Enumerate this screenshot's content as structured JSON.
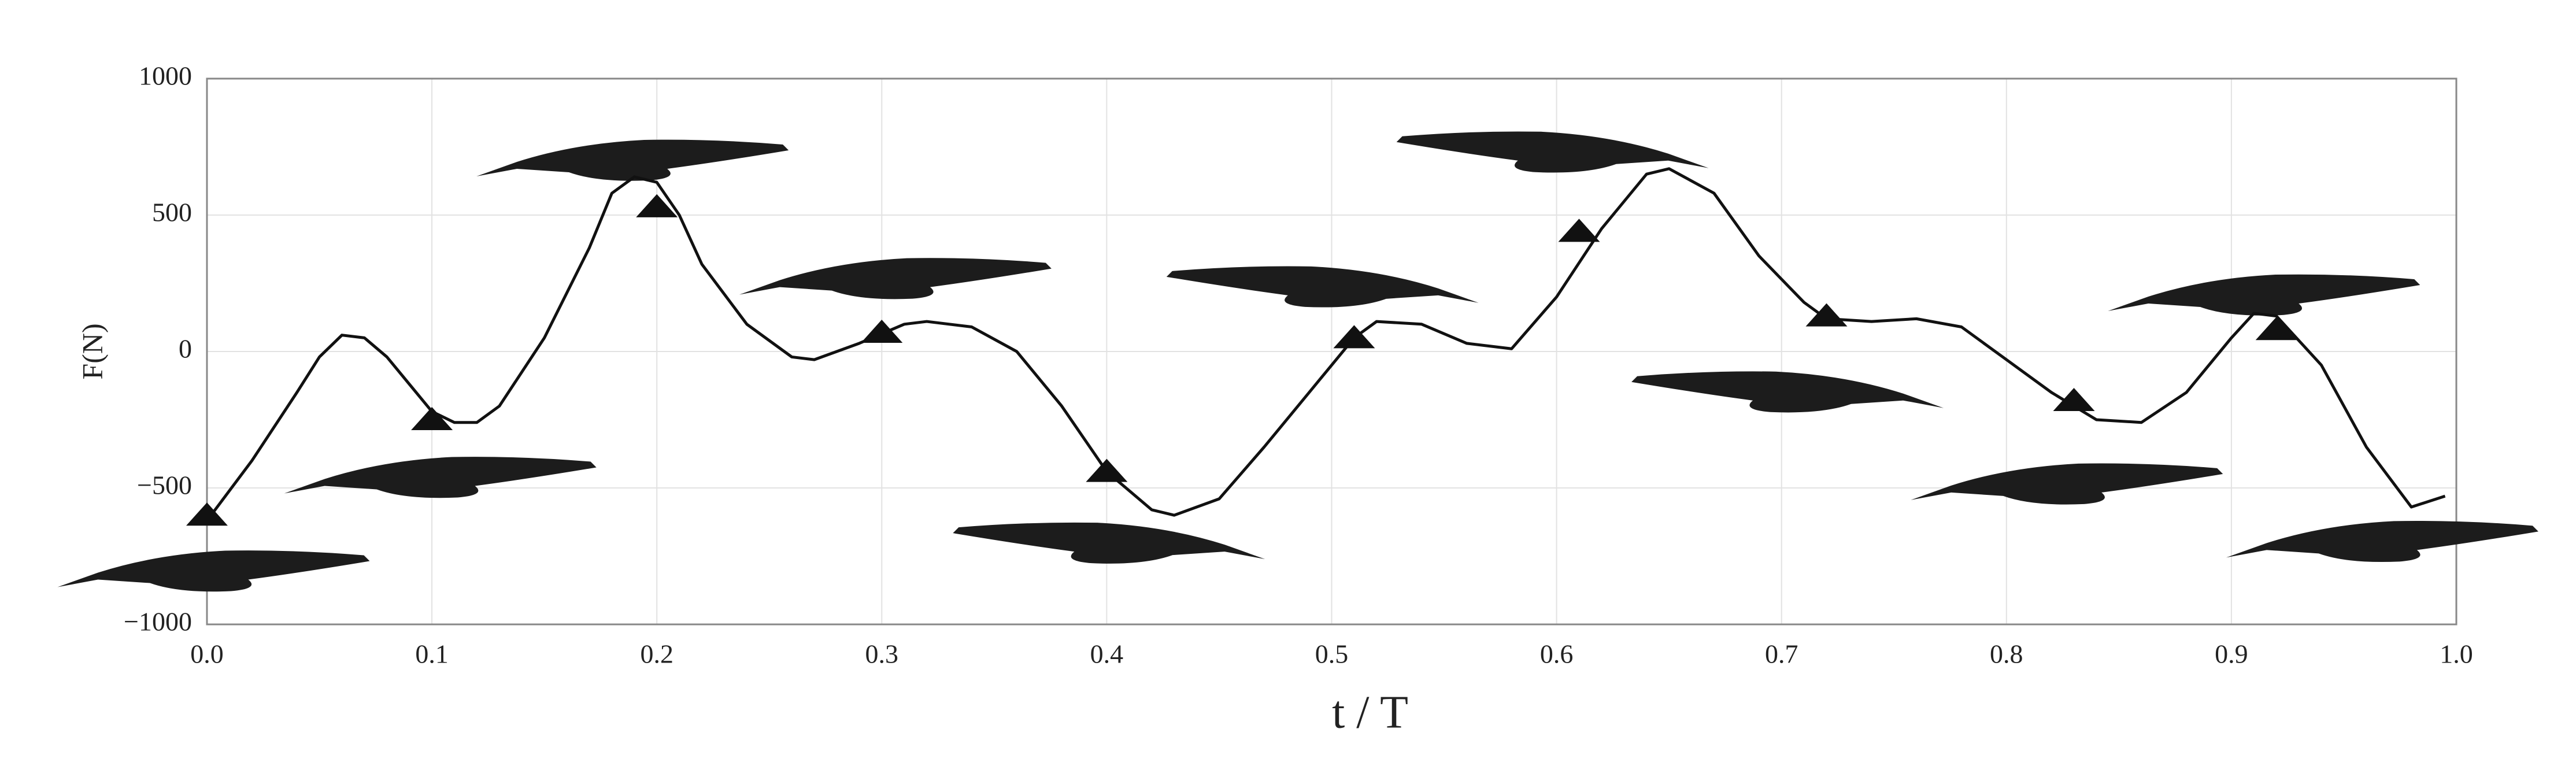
{
  "chart_data": {
    "type": "line",
    "xlabel": "t / T",
    "ylabel": "F(N)",
    "xlim": [
      0,
      1
    ],
    "ylim": [
      -1000,
      1000
    ],
    "xticks": [
      {
        "value": 0,
        "label": "0.0"
      },
      0.1,
      0.2,
      0.3,
      0.4,
      0.5,
      0.6,
      0.7,
      0.8,
      0.9,
      {
        "value": 1,
        "label": "1.0"
      }
    ],
    "yticks": [
      {
        "value": -1000,
        "label": "−1000"
      },
      {
        "value": -500,
        "label": "−500"
      },
      0,
      500,
      1000
    ],
    "grid": true,
    "series": [
      {
        "color": "#111111",
        "x": [
          0.0,
          0.02,
          0.04,
          0.05,
          0.06,
          0.07,
          0.08,
          0.09,
          0.1,
          0.11,
          0.12,
          0.13,
          0.15,
          0.17,
          0.18,
          0.19,
          0.2,
          0.21,
          0.22,
          0.24,
          0.26,
          0.27,
          0.29,
          0.31,
          0.32,
          0.34,
          0.36,
          0.38,
          0.4,
          0.42,
          0.43,
          0.45,
          0.47,
          0.49,
          0.51,
          0.52,
          0.54,
          0.56,
          0.58,
          0.6,
          0.62,
          0.64,
          0.65,
          0.67,
          0.69,
          0.71,
          0.72,
          0.74,
          0.76,
          0.78,
          0.8,
          0.82,
          0.84,
          0.86,
          0.88,
          0.9,
          0.91,
          0.92,
          0.94,
          0.96,
          0.98,
          0.995
        ],
        "values": [
          -620,
          -400,
          -150,
          -20,
          60,
          50,
          -20,
          -120,
          -220,
          -260,
          -260,
          -200,
          50,
          380,
          580,
          640,
          620,
          500,
          320,
          100,
          -20,
          -30,
          30,
          100,
          110,
          90,
          0,
          -200,
          -440,
          -580,
          -600,
          -540,
          -350,
          -150,
          50,
          110,
          100,
          30,
          10,
          200,
          450,
          650,
          670,
          580,
          350,
          180,
          120,
          110,
          120,
          90,
          -30,
          -150,
          -250,
          -260,
          -150,
          50,
          140,
          130,
          -50,
          -350,
          -570,
          -530
        ]
      }
    ],
    "markers": {
      "color": "#111111",
      "x": [
        0.0,
        0.1,
        0.2,
        0.3,
        0.4,
        0.51,
        0.61,
        0.72,
        0.83,
        0.92
      ],
      "values": [
        -600,
        -250,
        530,
        70,
        -440,
        50,
        440,
        130,
        -180,
        80
      ]
    }
  }
}
